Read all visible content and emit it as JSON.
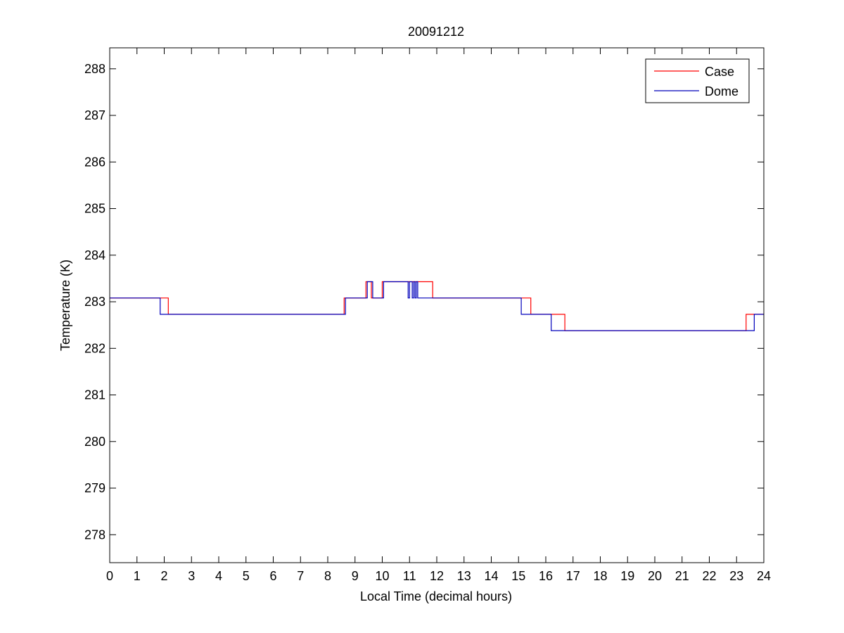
{
  "chart_data": {
    "type": "line",
    "title": "20091212",
    "xlabel": "Local Time (decimal hours)",
    "ylabel": "Temperature (K)",
    "xlim": [
      0,
      24
    ],
    "ylim": [
      277.4,
      288.45
    ],
    "xticks": [
      0,
      1,
      2,
      3,
      4,
      5,
      6,
      7,
      8,
      9,
      10,
      11,
      12,
      13,
      14,
      15,
      16,
      17,
      18,
      19,
      20,
      21,
      22,
      23,
      24
    ],
    "yticks": [
      278,
      279,
      280,
      281,
      282,
      283,
      284,
      285,
      286,
      287,
      288
    ],
    "grid": false,
    "legend_position": "top-right",
    "series": [
      {
        "name": "Case",
        "color": "#ff0000",
        "step": true,
        "x": [
          0,
          2.15,
          8.6,
          9.4,
          9.6,
          10.0,
          10.1,
          11.85,
          15.45,
          16.7,
          23.35,
          24
        ],
        "y": [
          283.08,
          282.73,
          283.08,
          283.43,
          283.08,
          283.43,
          283.43,
          283.08,
          282.73,
          282.38,
          282.73,
          282.73
        ]
      },
      {
        "name": "Dome",
        "color": "#0000bb",
        "step": true,
        "x": [
          0,
          1.85,
          8.65,
          9.45,
          9.65,
          10.05,
          10.95,
          11.0,
          11.1,
          11.15,
          11.2,
          11.25,
          11.3,
          15.1,
          16.2,
          23.65,
          24
        ],
        "y": [
          283.08,
          282.73,
          283.08,
          283.43,
          283.08,
          283.43,
          283.08,
          283.43,
          283.08,
          283.43,
          283.08,
          283.43,
          283.08,
          282.73,
          282.38,
          282.73,
          282.73
        ]
      }
    ]
  }
}
